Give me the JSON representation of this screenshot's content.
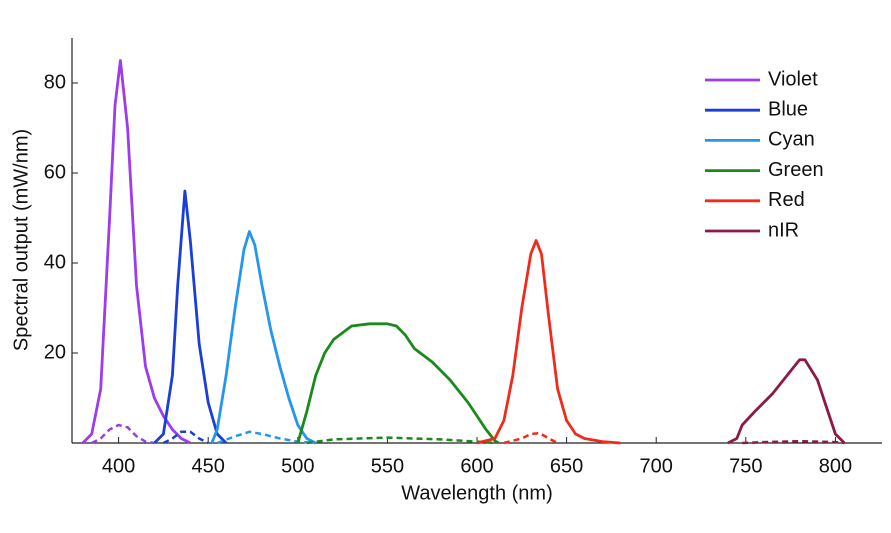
{
  "chart_data": {
    "type": "line",
    "x_label": "Wavelength (nm)",
    "y_label": "Spectral output (mW/nm)",
    "xlim": [
      374,
      826
    ],
    "ylim": [
      0,
      90
    ],
    "xticks": [
      400,
      450,
      500,
      550,
      600,
      650,
      700,
      750,
      800
    ],
    "yticks": [
      20,
      40,
      60,
      80
    ],
    "legend": "top-right",
    "series": [
      {
        "name": "Violet",
        "color": "#9b3cf0",
        "x": [
          380,
          385,
          390,
          395,
          398,
          401,
          405,
          410,
          415,
          420,
          425,
          430,
          435,
          440
        ],
        "values": [
          0,
          2,
          12,
          50,
          75,
          85,
          70,
          35,
          17,
          10,
          6,
          3,
          1,
          0
        ],
        "dashed_x": [
          385,
          390,
          395,
          400,
          405,
          410,
          415,
          420
        ],
        "dashed_values": [
          0,
          1,
          3,
          4,
          3.5,
          1.5,
          0.3,
          0
        ]
      },
      {
        "name": "Blue",
        "color": "#1a3ed8",
        "x": [
          420,
          425,
          430,
          433,
          437,
          440,
          445,
          450,
          455,
          460
        ],
        "values": [
          0,
          2,
          15,
          35,
          56,
          45,
          22,
          9,
          2,
          0
        ],
        "dashed_x": [
          425,
          430,
          435,
          440,
          445,
          450
        ],
        "dashed_values": [
          0,
          1,
          2.5,
          2.5,
          1,
          0
        ]
      },
      {
        "name": "Cyan",
        "color": "#2596ee",
        "x": [
          452,
          455,
          460,
          465,
          470,
          473,
          476,
          480,
          485,
          490,
          495,
          500,
          505,
          510
        ],
        "values": [
          0,
          3,
          15,
          30,
          43,
          47,
          44,
          35,
          25,
          17,
          10,
          4,
          1,
          0
        ],
        "dashed_x": [
          455,
          465,
          473,
          480,
          490,
          500,
          510
        ],
        "dashed_values": [
          0,
          1.5,
          2.5,
          2,
          1,
          0.3,
          0
        ]
      },
      {
        "name": "Green",
        "color": "#1a8a1a",
        "x": [
          500,
          505,
          510,
          515,
          520,
          530,
          540,
          550,
          555,
          560,
          565,
          575,
          585,
          595,
          600,
          605,
          610,
          612
        ],
        "values": [
          0,
          7,
          15,
          20,
          23,
          26,
          26.5,
          26.5,
          26,
          24,
          21,
          18,
          14,
          9,
          6,
          3,
          0.5,
          0
        ],
        "dashed_x": [
          505,
          520,
          550,
          580,
          600,
          610
        ],
        "dashed_values": [
          0,
          0.8,
          1.2,
          0.8,
          0.3,
          0
        ]
      },
      {
        "name": "Red",
        "color": "#f22a1a",
        "x": [
          600,
          610,
          615,
          620,
          625,
          630,
          633,
          636,
          640,
          645,
          650,
          655,
          660,
          670,
          680
        ],
        "values": [
          0,
          1,
          5,
          15,
          30,
          42,
          45,
          42,
          28,
          12,
          5,
          2,
          1,
          0.3,
          0
        ],
        "dashed_x": [
          615,
          625,
          630,
          635,
          640,
          645
        ],
        "dashed_values": [
          0,
          1,
          2,
          2.2,
          1,
          0
        ]
      },
      {
        "name": "nIR",
        "color": "#8b1a4a",
        "x": [
          740,
          745,
          748,
          755,
          765,
          775,
          780,
          783,
          790,
          795,
          800,
          805
        ],
        "values": [
          0,
          1,
          4,
          7,
          11,
          16,
          18.5,
          18.5,
          14,
          8,
          2,
          0
        ],
        "dashed_x": [
          748,
          760,
          780,
          800,
          805
        ],
        "dashed_values": [
          0,
          0.2,
          0.4,
          0.2,
          0
        ]
      }
    ]
  }
}
